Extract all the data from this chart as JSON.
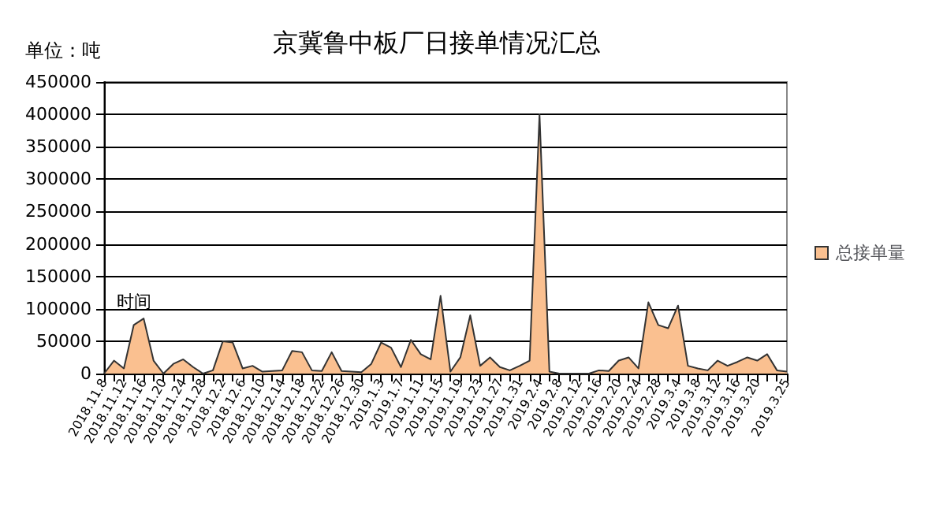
{
  "chart_data": {
    "type": "area",
    "title": "京冀鲁中板厂日接单情况汇总",
    "ylabel": "单位：吨",
    "xlabel": "时间",
    "categories": [
      "2018.11.8",
      null,
      "2018.11.12",
      null,
      "2018.11.16",
      null,
      "2018.11.20",
      null,
      "2018.11.24",
      null,
      "2018.11.28",
      null,
      "2018.12.2",
      null,
      "2018.12.6",
      null,
      "2018.12.10",
      null,
      "2018.12.14",
      null,
      "2018.12.18",
      null,
      "2018.12.22",
      null,
      "2018.12.26",
      null,
      "2018.12.30",
      null,
      "2019.1.3",
      null,
      "2019.1.7",
      null,
      "2019.1.11",
      null,
      "2019.1.15",
      null,
      "2019.1.19",
      null,
      "2019.1.23",
      null,
      "2019.1.27",
      null,
      "2019.1.31",
      null,
      "2019.2.4",
      null,
      "2019.2.8",
      null,
      "2019.2.12",
      null,
      "2019.2.16",
      null,
      "2019.2.20",
      null,
      "2019.2.24",
      null,
      "2019.2.28",
      null,
      "2019.3.4",
      null,
      "2019.3.8",
      null,
      "2019.3.12",
      null,
      "2019.3.16",
      null,
      "2019.3.20",
      null,
      null,
      "2019.3.25"
    ],
    "series": [
      {
        "name": "总接单量",
        "color": "#fac090",
        "values": [
          0,
          20000,
          8000,
          75000,
          85000,
          20000,
          0,
          15000,
          22000,
          10000,
          0,
          5000,
          50000,
          48000,
          8000,
          12000,
          3000,
          4000,
          5000,
          35000,
          33000,
          5000,
          4000,
          33000,
          4000,
          3000,
          2000,
          15000,
          48000,
          40000,
          10000,
          52000,
          30000,
          22000,
          120000,
          3000,
          25000,
          90000,
          12000,
          25000,
          10000,
          5000,
          12000,
          20000,
          400000,
          3000,
          0,
          0,
          0,
          0,
          5000,
          4000,
          20000,
          25000,
          8000,
          110000,
          75000,
          70000,
          105000,
          12000,
          8000,
          5000,
          20000,
          12000,
          18000,
          25000,
          20000,
          30000,
          5000,
          3000
        ]
      }
    ],
    "ylim": [
      0,
      450000
    ],
    "yticks": [
      0,
      50000,
      100000,
      150000,
      200000,
      250000,
      300000,
      350000,
      400000,
      450000
    ],
    "grid": "y",
    "legend": "right",
    "marker": "none",
    "line_style": "solid"
  }
}
